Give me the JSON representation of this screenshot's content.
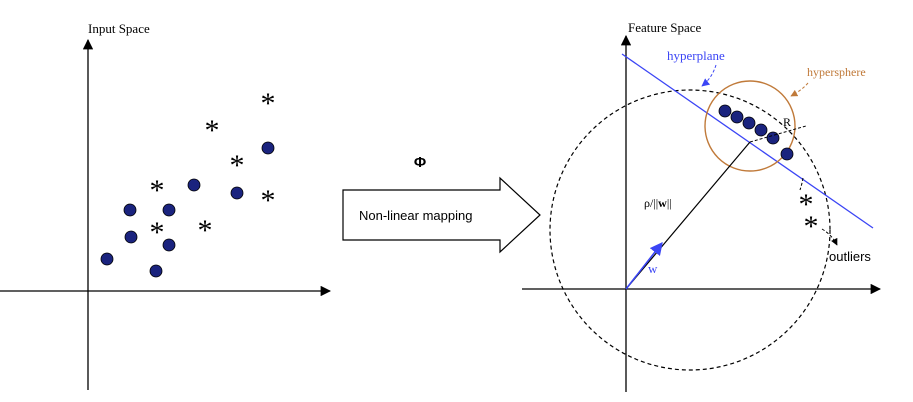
{
  "left_panel": {
    "title": "Input Space",
    "star_glyph": "*"
  },
  "middle": {
    "phi_label": "Φ",
    "arrow_label": "Non-linear mapping"
  },
  "right_panel": {
    "title": "Feature Space",
    "hyperplane_label": "hyperplane",
    "hypersphere_label": "hypersphere",
    "radius_label": "R",
    "distance_label_prefix": "ρ/||",
    "distance_label_w": "w",
    "distance_label_suffix": "||",
    "w_label": "w",
    "outliers_label": "outliers",
    "star_glyph": "*"
  },
  "colors": {
    "point_fill": "#1a237e",
    "hyperplane": "#3b45f5",
    "hypersphere": "#c07a3a",
    "axis": "#000000"
  }
}
